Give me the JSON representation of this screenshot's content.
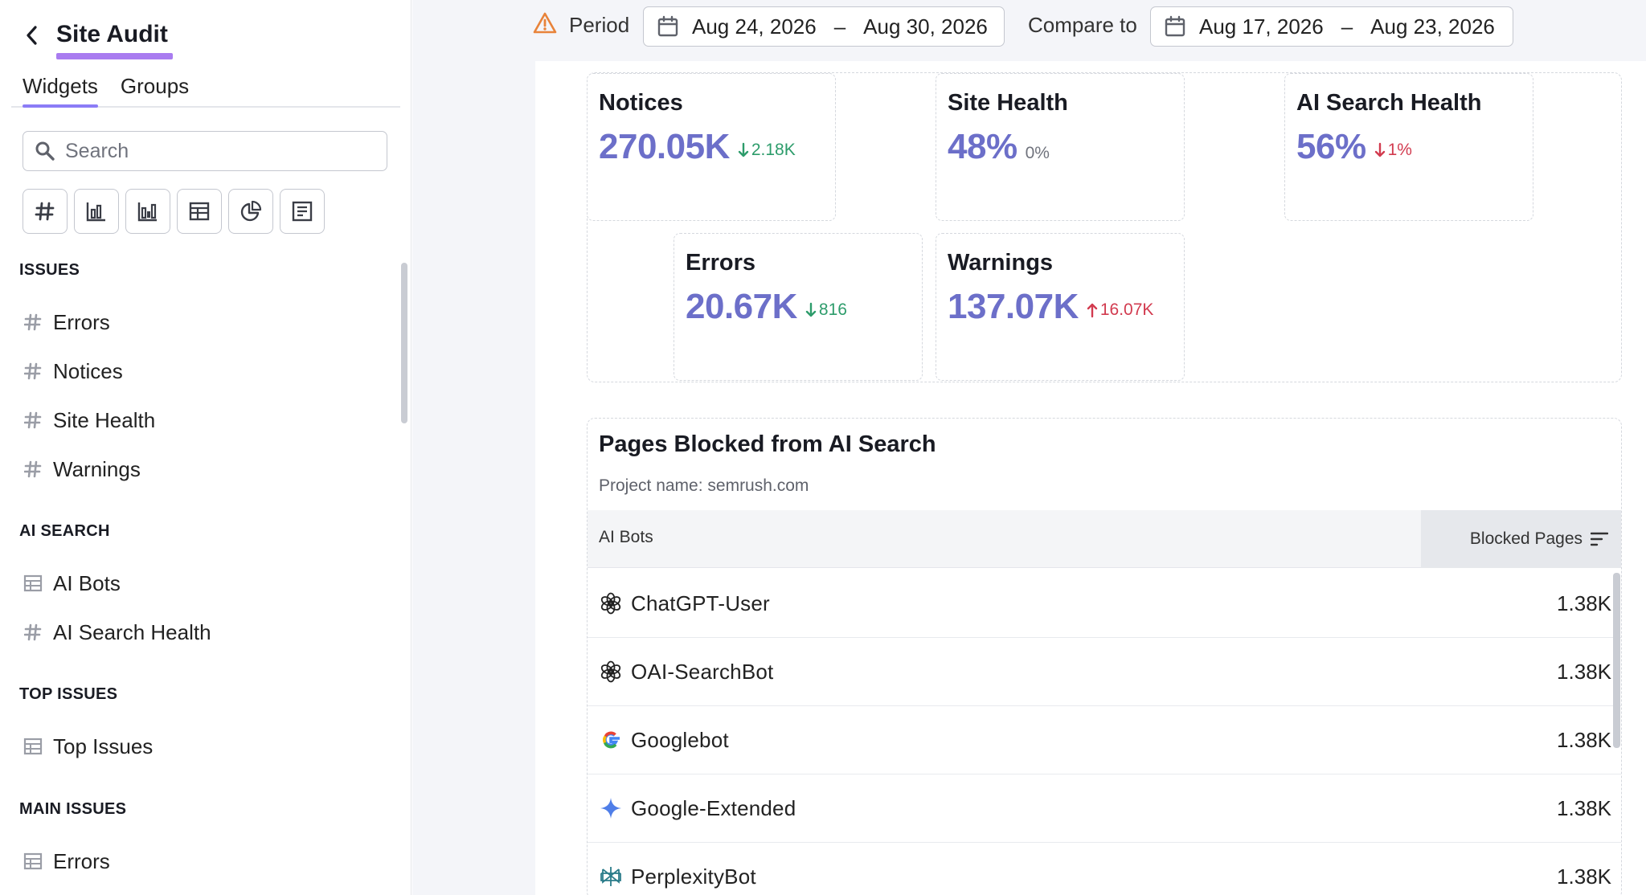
{
  "sidebar": {
    "title": "Site Audit",
    "tabs": [
      "Widgets",
      "Groups"
    ],
    "search_placeholder": "Search",
    "widget_types": [
      "number-icon",
      "bar-chart-icon",
      "grouped-bar-chart-icon",
      "table-icon",
      "pie-chart-icon",
      "note-icon"
    ],
    "sections": [
      {
        "title": "ISSUES",
        "items": [
          {
            "label": "Errors",
            "icon": "hash-icon"
          },
          {
            "label": "Notices",
            "icon": "hash-icon"
          },
          {
            "label": "Site Health",
            "icon": "hash-icon"
          },
          {
            "label": "Warnings",
            "icon": "hash-icon"
          }
        ]
      },
      {
        "title": "AI SEARCH",
        "items": [
          {
            "label": "AI Bots",
            "icon": "table-icon"
          },
          {
            "label": "AI Search Health",
            "icon": "hash-icon"
          }
        ]
      },
      {
        "title": "TOP ISSUES",
        "items": [
          {
            "label": "Top Issues",
            "icon": "table-icon"
          }
        ]
      },
      {
        "title": "MAIN ISSUES",
        "items": [
          {
            "label": "Errors",
            "icon": "table-icon"
          }
        ]
      }
    ]
  },
  "topbar": {
    "period_label": "Period",
    "period_from": "Aug 24, 2026",
    "period_to": "Aug 30, 2026",
    "dash": "–",
    "compare_label": "Compare to",
    "compare_from": "Aug 17, 2026",
    "compare_to": "Aug 23, 2026"
  },
  "cards": {
    "notices": {
      "title": "Notices",
      "value": "270.05K",
      "delta": "2.18K",
      "direction": "down",
      "tone": "good"
    },
    "site_health": {
      "title": "Site Health",
      "value": "48%",
      "delta": "0%",
      "direction": "none",
      "tone": "neutral"
    },
    "ai_search_health": {
      "title": "AI Search Health",
      "value": "56%",
      "delta": "1%",
      "direction": "down",
      "tone": "bad"
    },
    "errors": {
      "title": "Errors",
      "value": "20.67K",
      "delta": "816",
      "direction": "down",
      "tone": "good"
    },
    "warnings": {
      "title": "Warnings",
      "value": "137.07K",
      "delta": "16.07K",
      "direction": "up",
      "tone": "bad"
    }
  },
  "colors": {
    "accent": "#6c6fc9",
    "title_underline": "#a97cf0",
    "positive": "#2d9c6b",
    "negative": "#d23b4f",
    "warning_icon": "#e8833a"
  },
  "table": {
    "title": "Pages Blocked from AI Search",
    "subtitle": "Project name: semrush.com",
    "col_bots": "AI Bots",
    "col_blocked": "Blocked Pages",
    "rows": [
      {
        "name": "ChatGPT-User",
        "value": "1.38K",
        "icon": "openai-icon"
      },
      {
        "name": "OAI-SearchBot",
        "value": "1.38K",
        "icon": "openai-icon"
      },
      {
        "name": "Googlebot",
        "value": "1.38K",
        "icon": "google-icon"
      },
      {
        "name": "Google-Extended",
        "value": "1.38K",
        "icon": "gemini-icon"
      },
      {
        "name": "PerplexityBot",
        "value": "1.38K",
        "icon": "perplexity-icon"
      }
    ]
  }
}
